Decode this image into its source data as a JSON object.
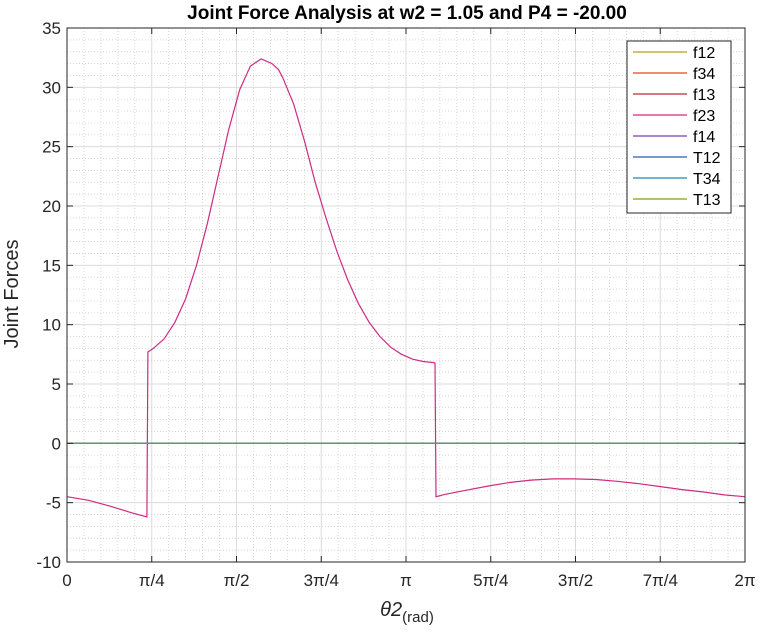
{
  "chart_data": {
    "type": "line",
    "title": "Joint Force Analysis at w2 = 1.05 and P4 = -20.00",
    "xlabel": "θ2",
    "xlabel_subscript": "(rad)",
    "ylabel": "Joint Forces",
    "xlim": [
      0,
      6.2832
    ],
    "ylim": [
      -10,
      35
    ],
    "grid": true,
    "minor_grid": true,
    "legend_position": "top-right",
    "x_ticks": [
      {
        "value": 0,
        "label": "0"
      },
      {
        "value": 0.7854,
        "label": "π/4"
      },
      {
        "value": 1.5708,
        "label": "π/2"
      },
      {
        "value": 2.3562,
        "label": "3π/4"
      },
      {
        "value": 3.1416,
        "label": "π"
      },
      {
        "value": 3.927,
        "label": "5π/4"
      },
      {
        "value": 4.7124,
        "label": "3π/2"
      },
      {
        "value": 5.4978,
        "label": "7π/4"
      },
      {
        "value": 6.2832,
        "label": "2π"
      }
    ],
    "y_ticks": [
      {
        "value": 35,
        "label": "35"
      },
      {
        "value": 30,
        "label": "30"
      },
      {
        "value": 25,
        "label": "25"
      },
      {
        "value": 20,
        "label": "20"
      },
      {
        "value": 15,
        "label": "15"
      },
      {
        "value": 10,
        "label": "10"
      },
      {
        "value": 5,
        "label": "5"
      },
      {
        "value": 0,
        "label": "0"
      },
      {
        "value": -5,
        "label": "-5"
      },
      {
        "value": -10,
        "label": "-10"
      }
    ],
    "series": [
      {
        "name": "f12",
        "color": "#b5a21a",
        "x": [
          0,
          6.2832
        ],
        "y": [
          0,
          0
        ]
      },
      {
        "name": "f34",
        "color": "#e04a10",
        "x": [
          0,
          6.2832
        ],
        "y": [
          0,
          0
        ]
      },
      {
        "name": "f13",
        "color": "#c0283c",
        "x": [
          0,
          6.2832
        ],
        "y": [
          0,
          0
        ]
      },
      {
        "name": "f23",
        "color": "#d02a82",
        "x": [
          0,
          0.2,
          0.4,
          0.6,
          0.72,
          0.74,
          0.75,
          0.8,
          0.9,
          1.0,
          1.1,
          1.2,
          1.3,
          1.4,
          1.5,
          1.6,
          1.7,
          1.8,
          1.9,
          1.96,
          2.0,
          2.1,
          2.2,
          2.3,
          2.4,
          2.5,
          2.6,
          2.7,
          2.8,
          2.9,
          3.0,
          3.1,
          3.2,
          3.3,
          3.4,
          3.41,
          3.42,
          3.5,
          3.7,
          3.9,
          4.1,
          4.3,
          4.5,
          4.7,
          4.9,
          5.1,
          5.3,
          5.5,
          5.7,
          5.9,
          6.1,
          6.2832
        ],
        "y": [
          -4.5,
          -4.8,
          -5.3,
          -5.85,
          -6.15,
          -6.2,
          7.7,
          8.0,
          8.8,
          10.2,
          12.2,
          15.0,
          18.5,
          22.5,
          26.5,
          29.8,
          31.8,
          32.4,
          32.0,
          31.5,
          30.8,
          28.6,
          25.5,
          22.0,
          19.0,
          16.2,
          13.8,
          11.8,
          10.2,
          9.0,
          8.1,
          7.5,
          7.1,
          6.9,
          6.8,
          6.75,
          -4.5,
          -4.3,
          -3.95,
          -3.6,
          -3.3,
          -3.1,
          -3.0,
          -3.0,
          -3.05,
          -3.2,
          -3.4,
          -3.65,
          -3.9,
          -4.1,
          -4.35,
          -4.5
        ]
      },
      {
        "name": "f14",
        "color": "#7a3eb2",
        "x": [
          0,
          6.2832
        ],
        "y": [
          0,
          0
        ]
      },
      {
        "name": "T12",
        "color": "#1f62b8",
        "x": [
          0,
          6.2832
        ],
        "y": [
          0,
          0
        ]
      },
      {
        "name": "T34",
        "color": "#1a8ab8",
        "x": [
          0,
          6.2832
        ],
        "y": [
          0,
          0
        ]
      },
      {
        "name": "T13",
        "color": "#7aa01a",
        "x": [
          0,
          6.2832
        ],
        "y": [
          0,
          0
        ]
      }
    ]
  }
}
